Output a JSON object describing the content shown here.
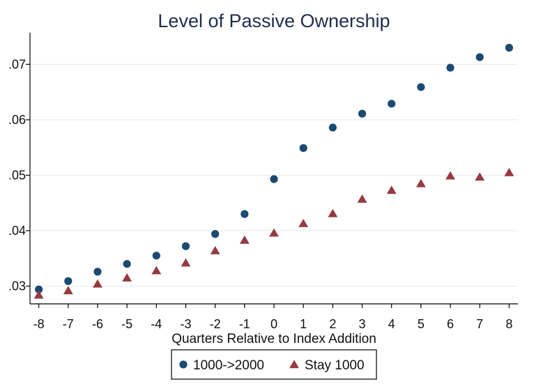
{
  "chart_data": {
    "type": "scatter",
    "title": "Level of Passive Ownership",
    "xlabel": "Quarters Relative to Index Addition",
    "ylabel": "",
    "x": [
      -8,
      -7,
      -6,
      -5,
      -4,
      -3,
      -2,
      -1,
      0,
      1,
      2,
      3,
      4,
      5,
      6,
      7,
      8
    ],
    "xticks": [
      "-8",
      "-7",
      "-6",
      "-5",
      "-4",
      "-3",
      "-2",
      "-1",
      "0",
      "1",
      "2",
      "3",
      "4",
      "5",
      "6",
      "7",
      "8"
    ],
    "yticks": [
      0.03,
      0.04,
      0.05,
      0.06,
      0.07
    ],
    "ytick_labels": [
      ".03",
      ".04",
      ".05",
      ".06",
      ".07"
    ],
    "xlim": [
      -8.3,
      8.3
    ],
    "ylim": [
      0.0268,
      0.0757
    ],
    "grid": true,
    "legend_position": "bottom",
    "series": [
      {
        "name": "1000->2000",
        "marker": "circle",
        "color": "#1b4a72",
        "values": [
          0.0294,
          0.0309,
          0.0326,
          0.034,
          0.0355,
          0.0372,
          0.0394,
          0.043,
          0.0493,
          0.0549,
          0.0586,
          0.0611,
          0.0629,
          0.0659,
          0.0694,
          0.0713,
          0.073
        ]
      },
      {
        "name": "Stay 1000",
        "marker": "triangle",
        "color": "#963a40",
        "values": [
          0.0284,
          0.0292,
          0.0304,
          0.0315,
          0.0328,
          0.0342,
          0.0364,
          0.0383,
          0.0396,
          0.0413,
          0.0431,
          0.0457,
          0.0473,
          0.0485,
          0.0499,
          0.0497,
          0.0505
        ]
      }
    ]
  }
}
